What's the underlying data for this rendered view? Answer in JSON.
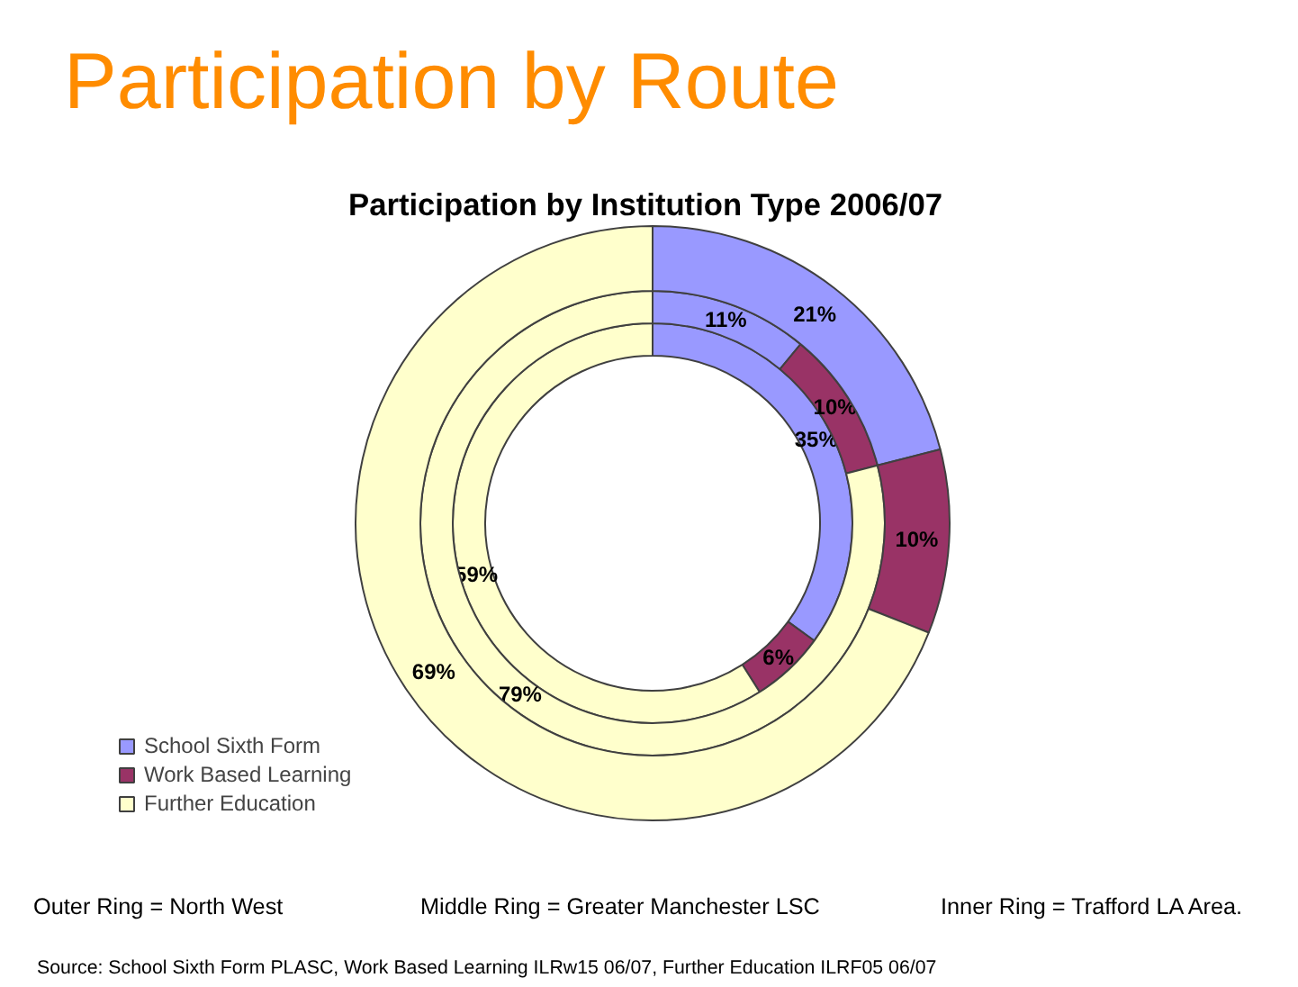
{
  "chart_data": {
    "type": "donut",
    "title": "Participation by Route",
    "subtitle": "Participation by Institution Type 2006/07",
    "categories": [
      "School Sixth Form",
      "Work Based Learning",
      "Further Education"
    ],
    "colors": [
      "#9999ff",
      "#993366",
      "#ffffcc"
    ],
    "series": [
      {
        "values": [
          35,
          6,
          59
        ],
        "value_labels": [
          "35%",
          "6%",
          "59%"
        ]
      },
      {
        "values": [
          11,
          10,
          79
        ],
        "value_labels": [
          "11%",
          "10%",
          "79%"
        ]
      },
      {
        "values": [
          21,
          10,
          69
        ],
        "value_labels": [
          "21%",
          "10%",
          "69%"
        ]
      }
    ],
    "legend": "bottom left",
    "annotations": [
      "Outer Ring = North West",
      "Middle Ring = Greater Manchester LSC",
      "Inner Ring = Trafford LA Area.",
      "Source: School Sixth Form PLASC, Work Based Learning ILRw15 06/07, Further Education ILRF05 06/07"
    ]
  }
}
